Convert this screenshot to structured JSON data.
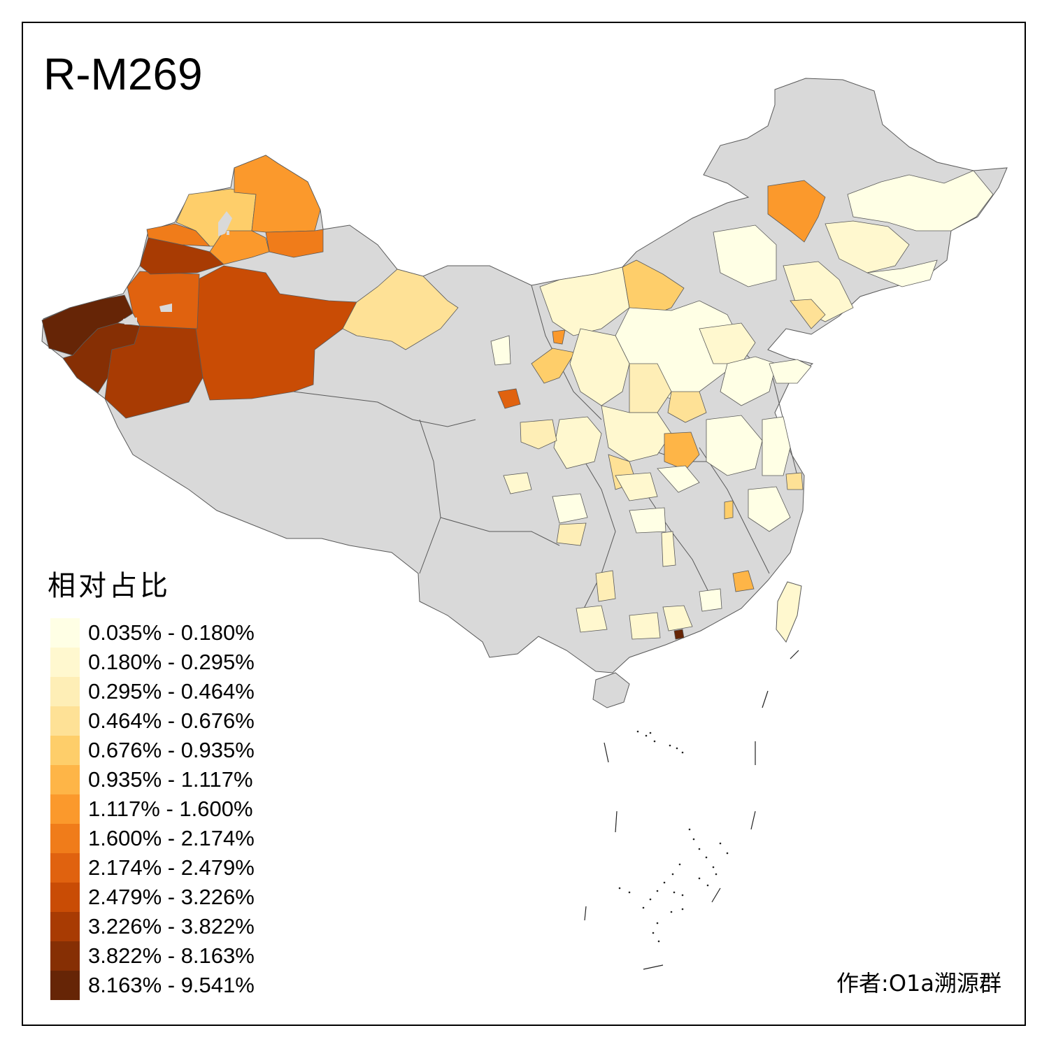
{
  "map": {
    "title": "R-M269",
    "no_data_color": "#d9d9d9",
    "region_border_color": "#595959"
  },
  "legend": {
    "title": "相对占比",
    "classes": [
      {
        "label": "0.035% - 0.180%",
        "color": "#ffffe5"
      },
      {
        "label": "0.180% - 0.295%",
        "color": "#fff8cf"
      },
      {
        "label": "0.295% - 0.464%",
        "color": "#feeeb6"
      },
      {
        "label": "0.464% - 0.676%",
        "color": "#fee196"
      },
      {
        "label": "0.676% - 0.935%",
        "color": "#fece6a"
      },
      {
        "label": "0.935% - 1.117%",
        "color": "#feb547"
      },
      {
        "label": "1.117% - 1.600%",
        "color": "#fb992c"
      },
      {
        "label": "1.600% - 2.174%",
        "color": "#f07c1a"
      },
      {
        "label": "2.174% - 2.479%",
        "color": "#e0620f"
      },
      {
        "label": "2.479% - 3.226%",
        "color": "#c94c05"
      },
      {
        "label": "3.226% - 3.822%",
        "color": "#a83b03"
      },
      {
        "label": "3.822% - 8.163%",
        "color": "#862f04"
      },
      {
        "label": "8.163% - 9.541%",
        "color": "#662506"
      }
    ]
  },
  "footer": {
    "author": "作者:O1a溯源群"
  }
}
